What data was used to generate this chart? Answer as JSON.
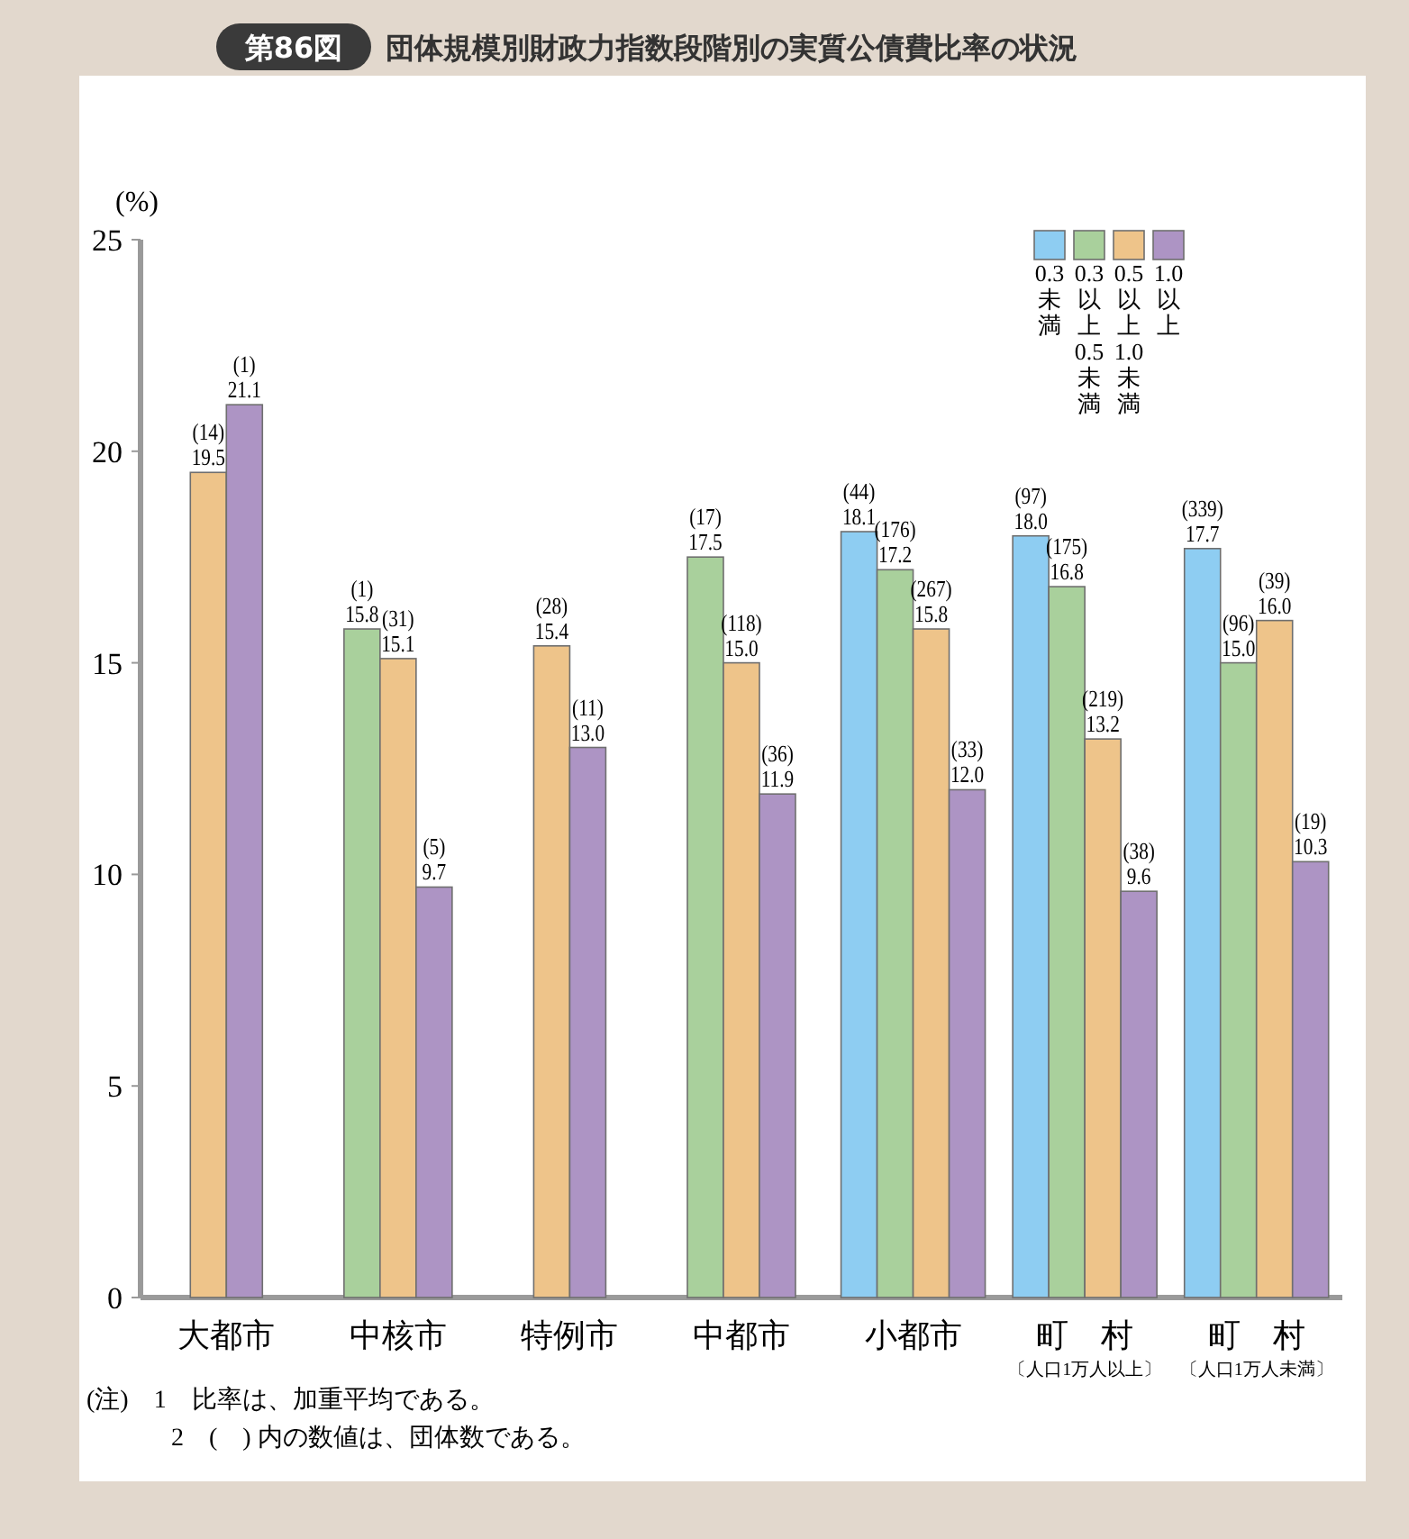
{
  "chart_data": {
    "type": "bar",
    "title": "第86図　団体規模別財政力指数段階別の実質公債費比率の状況",
    "ylabel": "(%)",
    "categories": [
      "大都市",
      "中核市",
      "特例市",
      "中都市",
      "小都市",
      "町　村$_{〔人口1万人以上〕}$",
      "町　村$_{〔人口1万人未満〕}$"
    ],
    "ylim": [
      0,
      25
    ],
    "yticks": [
      0,
      5,
      10,
      15,
      20,
      25
    ],
    "grid": false,
    "legend": "top right",
    "series": [
      {
        "name": "0.3未満",
        "color": "#8ecdf2",
        "values": [
          null,
          null,
          null,
          null,
          18.1,
          18.0,
          17.7
        ],
        "value_labels": [
          null,
          null,
          null,
          null,
          "(44)\n18.1",
          "(97)\n18.0",
          "(339)\n17.7"
        ]
      },
      {
        "name": "0.3以上0.5未満",
        "color": "#a9d09c",
        "values": [
          null,
          15.8,
          null,
          17.5,
          17.2,
          16.8,
          15.0
        ],
        "value_labels": [
          null,
          "(1)\n15.8",
          null,
          "(17)\n17.5",
          "(176)\n17.2",
          "(175)\n16.8",
          "(96)\n15.0"
        ]
      },
      {
        "name": "0.5以上1.0未満",
        "color": "#eec48a",
        "values": [
          19.5,
          15.1,
          15.4,
          15.0,
          15.8,
          13.2,
          16.0
        ],
        "value_labels": [
          "(14)\n19.5",
          "(31)\n15.1",
          "(28)\n15.4",
          "(118)\n15.0",
          "(267)\n15.8",
          "(219)\n13.2",
          "(39)\n16.0"
        ]
      },
      {
        "name": "1.0以上",
        "color": "#ad94c4",
        "values": [
          21.1,
          9.7,
          13.0,
          11.9,
          12.0,
          9.6,
          10.3
        ],
        "value_labels": [
          "(1)\n21.1",
          "(5)\n9.7",
          "(11)\n13.0",
          "(36)\n11.9",
          "(33)\n12.0",
          "(38)\n9.6",
          "(19)\n10.3"
        ]
      }
    ],
    "annotations": [
      "(注)　1　比率は、加重平均である。",
      "2　(　) 内の数値は、団体数である。"
    ]
  }
}
